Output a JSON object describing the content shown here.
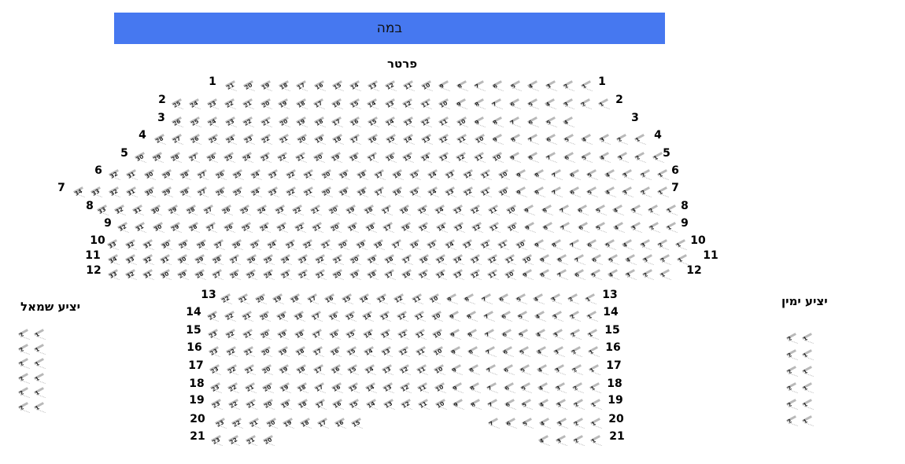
{
  "stage": {
    "label": "במה",
    "color": "#4678f0"
  },
  "parterre": {
    "title": "פרטר",
    "rows": [
      {
        "label": "1",
        "seats": [
          21,
          20,
          19,
          18,
          17,
          16,
          15,
          14,
          13,
          12,
          11,
          10,
          9,
          8,
          7,
          6,
          5,
          4,
          3,
          2,
          1
        ]
      },
      {
        "label": "2",
        "seats": [
          25,
          24,
          23,
          22,
          21,
          20,
          19,
          18,
          17,
          16,
          15,
          14,
          13,
          12,
          11,
          10,
          9,
          8,
          7,
          6,
          5,
          4,
          3,
          2,
          1
        ]
      },
      {
        "label": "3",
        "seats": [
          26,
          25,
          24,
          23,
          22,
          21,
          20,
          19,
          18,
          17,
          16,
          15,
          14,
          13,
          12,
          11,
          10,
          9,
          8,
          7,
          6,
          5,
          4
        ]
      },
      {
        "label": "4",
        "seats": [
          28,
          27,
          26,
          25,
          24,
          23,
          22,
          21,
          20,
          19,
          18,
          17,
          16,
          15,
          14,
          13,
          12,
          11,
          10,
          9,
          8,
          7,
          6,
          5,
          4,
          3,
          2,
          1
        ]
      },
      {
        "label": "5",
        "seats": [
          30,
          29,
          28,
          27,
          26,
          25,
          24,
          23,
          22,
          21,
          20,
          19,
          18,
          17,
          16,
          15,
          14,
          13,
          12,
          11,
          10,
          9,
          8,
          7,
          6,
          5,
          4,
          3,
          2,
          1
        ]
      },
      {
        "label": "6",
        "seats": [
          32,
          31,
          30,
          29,
          28,
          27,
          26,
          25,
          24,
          23,
          22,
          21,
          20,
          19,
          18,
          17,
          16,
          15,
          14,
          13,
          12,
          11,
          10,
          9,
          8,
          7,
          6,
          5,
          4,
          3,
          2,
          1
        ]
      },
      {
        "label": "7",
        "seats": [
          34,
          33,
          32,
          31,
          30,
          29,
          28,
          27,
          26,
          25,
          24,
          23,
          22,
          21,
          20,
          19,
          18,
          17,
          16,
          15,
          14,
          13,
          12,
          11,
          10,
          9,
          8,
          7,
          6,
          5,
          4,
          3,
          2,
          1
        ]
      },
      {
        "label": "8",
        "seats": [
          33,
          32,
          31,
          30,
          29,
          28,
          27,
          26,
          25,
          24,
          23,
          22,
          21,
          20,
          19,
          18,
          17,
          16,
          15,
          14,
          13,
          12,
          11,
          10,
          9,
          8,
          7,
          6,
          5,
          4,
          3,
          2,
          1
        ]
      },
      {
        "label": "9",
        "seats": [
          32,
          31,
          30,
          29,
          28,
          27,
          26,
          25,
          24,
          23,
          22,
          21,
          20,
          19,
          18,
          17,
          16,
          15,
          14,
          13,
          12,
          11,
          10,
          9,
          8,
          7,
          6,
          5,
          4,
          3,
          2,
          1
        ]
      },
      {
        "label": "10",
        "seats": [
          33,
          32,
          31,
          30,
          29,
          28,
          27,
          26,
          25,
          24,
          23,
          22,
          21,
          20,
          19,
          18,
          17,
          16,
          15,
          14,
          13,
          12,
          11,
          10,
          9,
          8,
          7,
          6,
          5,
          4,
          3,
          2,
          1
        ]
      },
      {
        "label": "11",
        "seats": [
          34,
          33,
          32,
          31,
          30,
          29,
          28,
          27,
          26,
          25,
          24,
          23,
          22,
          21,
          20,
          19,
          18,
          17,
          16,
          15,
          14,
          13,
          12,
          11,
          10,
          9,
          8,
          7,
          6,
          5,
          4,
          3,
          2,
          1
        ]
      },
      {
        "label": "12",
        "seats": [
          33,
          32,
          31,
          30,
          29,
          28,
          27,
          26,
          25,
          24,
          23,
          22,
          21,
          20,
          19,
          18,
          17,
          16,
          15,
          14,
          13,
          12,
          11,
          10,
          9,
          8,
          7,
          6,
          5,
          4,
          3,
          2,
          1
        ]
      },
      {
        "label": "13",
        "seats": [
          22,
          21,
          20,
          19,
          18,
          17,
          16,
          15,
          14,
          13,
          12,
          11,
          10,
          9,
          8,
          7,
          6,
          5,
          4,
          3,
          2,
          1
        ]
      },
      {
        "label": "14",
        "seats": [
          23,
          22,
          21,
          20,
          19,
          18,
          17,
          16,
          15,
          14,
          13,
          12,
          11,
          10,
          9,
          8,
          7,
          6,
          5,
          4,
          3,
          2,
          1
        ]
      },
      {
        "label": "15",
        "seats": [
          23,
          22,
          21,
          20,
          19,
          18,
          17,
          16,
          15,
          14,
          13,
          12,
          11,
          10,
          9,
          8,
          7,
          6,
          5,
          4,
          3,
          2,
          1
        ]
      },
      {
        "label": "16",
        "seats": [
          23,
          22,
          21,
          20,
          19,
          18,
          17,
          16,
          15,
          14,
          13,
          12,
          11,
          10,
          9,
          8,
          7,
          6,
          5,
          4,
          3,
          2,
          1
        ]
      },
      {
        "label": "17",
        "seats": [
          23,
          22,
          21,
          20,
          19,
          18,
          17,
          16,
          15,
          14,
          13,
          12,
          11,
          10,
          9,
          8,
          7,
          6,
          5,
          4,
          3,
          2,
          1
        ]
      },
      {
        "label": "18",
        "seats": [
          23,
          22,
          21,
          20,
          19,
          18,
          17,
          16,
          15,
          14,
          13,
          12,
          11,
          10,
          9,
          8,
          7,
          6,
          5,
          4,
          3,
          2,
          1
        ]
      },
      {
        "label": "19",
        "seats": [
          23,
          22,
          21,
          20,
          19,
          18,
          17,
          16,
          15,
          14,
          13,
          12,
          11,
          10,
          9,
          8,
          7,
          6,
          5,
          4,
          3,
          2,
          1
        ]
      },
      {
        "label": "20",
        "seats": [
          23,
          22,
          21,
          20,
          19,
          18,
          17,
          16,
          15,
          7,
          6,
          5,
          4,
          3,
          2,
          1
        ]
      },
      {
        "label": "21",
        "seats": [
          23,
          22,
          21,
          20,
          4,
          3,
          2,
          1
        ]
      }
    ]
  },
  "balcony_left": {
    "title": "יציע שמאל",
    "rows": [
      [
        2,
        1
      ],
      [
        2,
        1
      ],
      [
        2,
        1
      ],
      [
        2,
        1
      ],
      [
        2,
        1
      ],
      [
        2,
        1
      ]
    ]
  },
  "balcony_right": {
    "title": "יציע ימין",
    "rows": [
      [
        2,
        1
      ],
      [
        2,
        1
      ],
      [
        2,
        1
      ],
      [
        2,
        1
      ],
      [
        2,
        1
      ],
      [
        2,
        1
      ]
    ]
  }
}
